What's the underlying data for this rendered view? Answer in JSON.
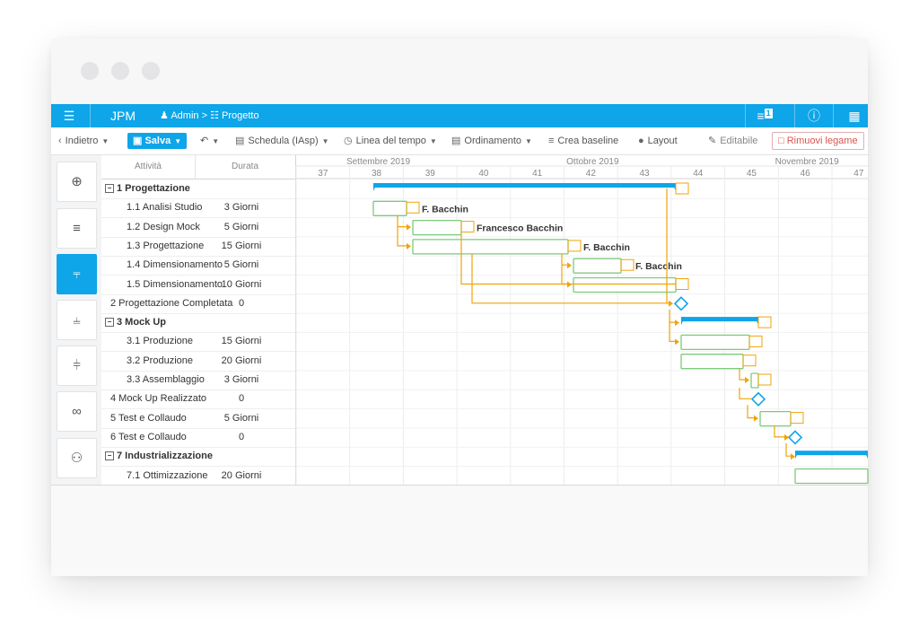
{
  "topbar": {
    "app_name": "JPM",
    "crumb_user": "Admin",
    "crumb_sep": ">",
    "crumb_project": "Progetto",
    "notif_count": "1"
  },
  "toolbar": {
    "back": "Indietro",
    "save": "Salva",
    "schedule": "Schedula (IAsp)",
    "timeline": "Linea del tempo",
    "ordering": "Ordinamento",
    "baseline": "Crea baseline",
    "layout": "Layout",
    "editable": "Editabile",
    "remove_link": "Rimuovi legame"
  },
  "sidebar": {
    "icons": [
      "globe-icon",
      "list-edit-icon",
      "gantt-icon",
      "gantt-indent-icon",
      "gantt-outdent-icon",
      "link-icon",
      "users-icon"
    ],
    "active_index": 2
  },
  "grid": {
    "col_activity": "Attività",
    "col_duration": "Durata",
    "rows": [
      {
        "name": "1 Progettazione",
        "duration": "",
        "summary": true,
        "indent": 0
      },
      {
        "name": "1.1 Analisi Studio",
        "duration": "3 Giorni",
        "summary": false,
        "indent": 1
      },
      {
        "name": "1.2 Design Mock",
        "duration": "5 Giorni",
        "summary": false,
        "indent": 1
      },
      {
        "name": "1.3 Progettazione",
        "duration": "15 Giorni",
        "summary": false,
        "indent": 1
      },
      {
        "name": "1.4 Dimensionamento",
        "duration": "5 Giorni",
        "summary": false,
        "indent": 1
      },
      {
        "name": "1.5 Dimensionamento",
        "duration": "10 Giorni",
        "summary": false,
        "indent": 1
      },
      {
        "name": "2 Progettazione Completata",
        "duration": "0",
        "summary": false,
        "indent": 0
      },
      {
        "name": "3 Mock Up",
        "duration": "",
        "summary": true,
        "indent": 0
      },
      {
        "name": "3.1 Produzione",
        "duration": "15 Giorni",
        "summary": false,
        "indent": 1
      },
      {
        "name": "3.2 Produzione",
        "duration": "20 Giorni",
        "summary": false,
        "indent": 1
      },
      {
        "name": "3.3 Assemblaggio",
        "duration": "3 Giorni",
        "summary": false,
        "indent": 1
      },
      {
        "name": "4 Mock Up Realizzato",
        "duration": "0",
        "summary": false,
        "indent": 0
      },
      {
        "name": "5 Test e Collaudo",
        "duration": "5 Giorni",
        "summary": false,
        "indent": 0
      },
      {
        "name": "6 Test e Collaudo",
        "duration": "0",
        "summary": false,
        "indent": 0
      },
      {
        "name": "7 Industrializzazione",
        "duration": "",
        "summary": true,
        "indent": 0
      },
      {
        "name": "7.1 Ottimizzazione",
        "duration": "20 Giorni",
        "summary": false,
        "indent": 1
      }
    ]
  },
  "gantt": {
    "months": [
      {
        "label": "Settembre 2019",
        "week": 38
      },
      {
        "label": "Ottobre 2019",
        "week": 42
      },
      {
        "label": "Novembre 2019",
        "week": 46
      }
    ],
    "weeks": [
      37,
      38,
      39,
      40,
      41,
      42,
      43,
      44,
      45,
      46,
      47
    ],
    "resources": [
      "F. Bacchin",
      "Francesco Bacchin",
      "F. Bacchin",
      "F. Bacchin"
    ],
    "colors": {
      "accent": "#0ea5e9",
      "task_border": "#7dc97d",
      "link": "#f0a30a",
      "milestone": "#0ea5e9"
    }
  }
}
